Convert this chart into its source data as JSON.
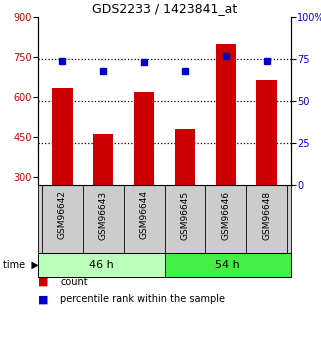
{
  "title": "GDS2233 / 1423841_at",
  "categories": [
    "GSM96642",
    "GSM96643",
    "GSM96644",
    "GSM96645",
    "GSM96646",
    "GSM96648"
  ],
  "counts": [
    635,
    462,
    620,
    480,
    800,
    665
  ],
  "percentiles": [
    74,
    68,
    73,
    68,
    77,
    74
  ],
  "ylim_left": [
    270,
    900
  ],
  "ylim_right": [
    0,
    100
  ],
  "yticks_left": [
    300,
    450,
    600,
    750,
    900
  ],
  "yticks_right": [
    0,
    25,
    50,
    75,
    100
  ],
  "bar_color": "#cc0000",
  "dot_color": "#0000cc",
  "groups": [
    {
      "label": "46 h",
      "n": 3,
      "color": "#bbffbb"
    },
    {
      "label": "54 h",
      "n": 3,
      "color": "#44ee44"
    }
  ],
  "legend_count": "count",
  "legend_percentile": "percentile rank within the sample",
  "tick_label_area_color": "#cccccc",
  "base_value": 270
}
